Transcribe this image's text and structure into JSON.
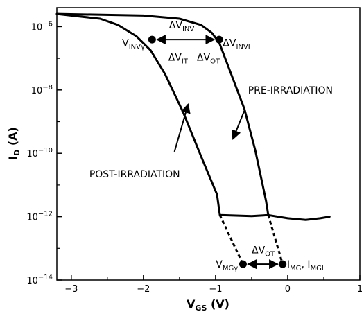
{
  "chart_data": {
    "type": "line",
    "xlabel": {
      "main": "V",
      "sub": "GS",
      "unit": " (V)"
    },
    "ylabel": {
      "main": "I",
      "sub": "D",
      "unit": " (A)"
    },
    "xlim": [
      -3.2,
      1.0
    ],
    "ylim_log10": [
      -14,
      -5.4
    ],
    "log_y": true,
    "grid": false,
    "x_ticks": [
      {
        "value": -3,
        "label": "−3"
      },
      {
        "value": -2,
        "label": "−2"
      },
      {
        "value": -1,
        "label": "−1"
      },
      {
        "value": 0,
        "label": "0"
      },
      {
        "value": 1,
        "label": "1"
      }
    ],
    "y_ticks": [
      {
        "exp": -6,
        "base": "10",
        "power": "−6"
      },
      {
        "exp": -8,
        "base": "10",
        "power": "−8"
      },
      {
        "exp": -10,
        "base": "10",
        "power": "−10"
      },
      {
        "exp": -12,
        "base": "10",
        "power": "−12"
      },
      {
        "exp": -14,
        "base": "10",
        "power": "−14"
      }
    ],
    "series": [
      {
        "name": "PRE-IRRADIATION",
        "style": "solid",
        "points": [
          [
            -3.2,
            -5.6
          ],
          [
            -2.0,
            -5.65
          ],
          [
            -1.5,
            -5.75
          ],
          [
            -1.2,
            -5.95
          ],
          [
            -1.05,
            -6.2
          ],
          [
            -0.95,
            -6.5
          ],
          [
            -0.8,
            -7.4
          ],
          [
            -0.6,
            -8.6
          ],
          [
            -0.45,
            -9.9
          ],
          [
            -0.3,
            -11.5
          ],
          [
            -0.27,
            -11.95
          ]
        ]
      },
      {
        "name": "POST-IRRADIATION",
        "style": "solid",
        "points": [
          [
            -3.2,
            -5.6
          ],
          [
            -2.6,
            -5.75
          ],
          [
            -2.35,
            -5.95
          ],
          [
            -2.1,
            -6.3
          ],
          [
            -1.9,
            -6.75
          ],
          [
            -1.7,
            -7.5
          ],
          [
            -1.45,
            -8.7
          ],
          [
            -1.2,
            -10.1
          ],
          [
            -0.98,
            -11.3
          ],
          [
            -0.94,
            -11.95
          ],
          [
            -0.5,
            -11.98
          ],
          [
            -0.27,
            -11.95
          ],
          [
            0.0,
            -12.05
          ],
          [
            0.25,
            -12.1
          ],
          [
            0.45,
            -12.05
          ],
          [
            0.58,
            -12.0
          ]
        ]
      },
      {
        "name": "post-extrapolation",
        "style": "dashed",
        "points": [
          [
            -0.94,
            -11.95
          ],
          [
            -0.62,
            -13.5
          ]
        ]
      },
      {
        "name": "pre-extrapolation",
        "style": "dashed",
        "points": [
          [
            -0.27,
            -11.95
          ],
          [
            -0.07,
            -13.5
          ]
        ]
      }
    ],
    "markers": [
      {
        "x": -1.88,
        "y": -6.41
      },
      {
        "x": -0.95,
        "y": -6.41
      },
      {
        "x": -0.62,
        "y": -13.5
      },
      {
        "x": -0.07,
        "y": -13.5
      }
    ],
    "arrows": [
      {
        "from": [
          -1.88,
          -6.41
        ],
        "to": [
          -0.95,
          -6.41
        ]
      },
      {
        "from": [
          -0.62,
          -13.5
        ],
        "to": [
          -0.07,
          -13.5
        ]
      }
    ],
    "pointers": [
      {
        "label_ref": "pre",
        "from": [
          -0.6,
          -8.65
        ],
        "to": [
          -0.76,
          -9.55
        ]
      },
      {
        "label_ref": "post",
        "from": [
          -1.57,
          -9.95
        ],
        "to": [
          -1.38,
          -8.45
        ]
      }
    ],
    "annotations": [
      {
        "id": "pre",
        "parts": [
          {
            "t": "PRE-IRRADIATION"
          }
        ],
        "x": -0.55,
        "y": -8.0,
        "anchor": "start"
      },
      {
        "id": "post",
        "parts": [
          {
            "t": "POST-IRRADIATION"
          }
        ],
        "x": -2.75,
        "y": -10.65,
        "anchor": "start"
      },
      {
        "id": "vinv",
        "parts": [
          {
            "t": "ΔV"
          },
          {
            "t": "INV",
            "s": "sub"
          }
        ],
        "x": -1.47,
        "y": -5.95,
        "anchor": "middle"
      },
      {
        "id": "vinvg",
        "parts": [
          {
            "t": "V"
          },
          {
            "t": "INVγ",
            "s": "sub"
          }
        ],
        "x": -1.98,
        "y": -6.5,
        "anchor": "end"
      },
      {
        "id": "vinvi",
        "parts": [
          {
            "t": "ΔV"
          },
          {
            "t": "INVI",
            "s": "sub"
          }
        ],
        "x": -0.9,
        "y": -6.5,
        "anchor": "start"
      },
      {
        "id": "vit",
        "parts": [
          {
            "t": "ΔV"
          },
          {
            "t": "IT",
            "s": "sub"
          }
        ],
        "x": -1.52,
        "y": -6.97,
        "anchor": "middle"
      },
      {
        "id": "vot1",
        "parts": [
          {
            "t": "ΔV"
          },
          {
            "t": "OT",
            "s": "sub"
          }
        ],
        "x": -1.1,
        "y": -6.97,
        "anchor": "middle"
      },
      {
        "id": "vmg",
        "parts": [
          {
            "t": "V"
          },
          {
            "t": "MGγ",
            "s": "sub"
          }
        ],
        "x": -0.69,
        "y": -13.5,
        "anchor": "end"
      },
      {
        "id": "vot2",
        "parts": [
          {
            "t": "ΔV"
          },
          {
            "t": "OT",
            "s": "sub"
          }
        ],
        "x": -0.34,
        "y": -13.05,
        "anchor": "middle"
      },
      {
        "id": "img",
        "parts": [
          {
            "t": "I"
          },
          {
            "t": "MG",
            "s": "sub"
          },
          {
            "t": ", I"
          },
          {
            "t": "MGI",
            "s": "sub"
          }
        ],
        "x": -0.01,
        "y": -13.5,
        "anchor": "start"
      }
    ]
  }
}
